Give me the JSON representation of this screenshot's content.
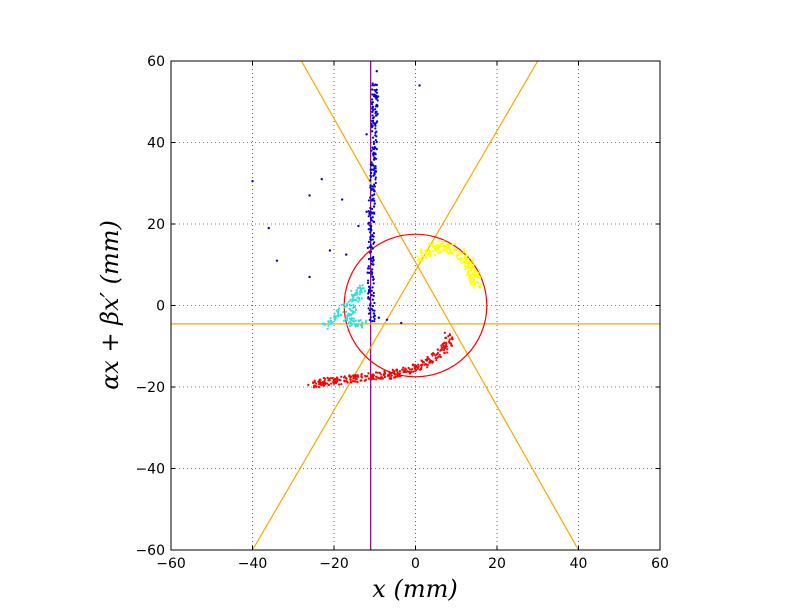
{
  "chart_data": {
    "type": "scatter",
    "title": "",
    "xlabel": "x  (mm)",
    "ylabel": "αx + βx′   (mm)",
    "xlim": [
      -60,
      60
    ],
    "ylim": [
      -60,
      60
    ],
    "x_ticks": [
      -60,
      -40,
      -20,
      0,
      20,
      40,
      60
    ],
    "y_ticks": [
      -60,
      -40,
      -20,
      0,
      20,
      40,
      60
    ],
    "x_tick_labels": [
      "−60",
      "−40",
      "−20",
      "0",
      "20",
      "40",
      "60"
    ],
    "y_tick_labels": [
      "−60",
      "−40",
      "−20",
      "0",
      "20",
      "40",
      "60"
    ],
    "grid": true,
    "grid_style": "dotted",
    "colors": {
      "blue": "#0000dd",
      "cyan": "#33dddd",
      "yellow": "#ffff00",
      "red": "#ff0000",
      "orange_lines": "#ffa500",
      "purple_line": "#800080",
      "circle": "#ff0000"
    },
    "reference_lines": [
      {
        "kind": "vertical",
        "x": -11,
        "color": "#800080"
      },
      {
        "kind": "horizontal",
        "y": -4.5,
        "color": "#ffa500"
      },
      {
        "kind": "line",
        "from": [
          -28,
          60
        ],
        "to": [
          40,
          -60
        ],
        "color": "#ffa500"
      },
      {
        "kind": "line",
        "from": [
          -40,
          -60
        ],
        "to": [
          30,
          60
        ],
        "color": "#ffa500"
      }
    ],
    "circle": {
      "cx": 0,
      "cy": 0,
      "r": 17.5,
      "color": "#ff0000"
    },
    "series": [
      {
        "color": "#0000dd",
        "trace": [
          [
            -10.8,
            -3.5
          ],
          [
            -10.9,
            2
          ],
          [
            -11,
            10
          ],
          [
            -10.8,
            20
          ],
          [
            -10.5,
            30
          ],
          [
            -10.2,
            40
          ],
          [
            -10,
            48
          ],
          [
            -9.8,
            55
          ]
        ],
        "width": 0.8,
        "n": 260,
        "scattered": [
          [
            -9.5,
            57.5
          ],
          [
            1,
            54
          ],
          [
            -12,
            42
          ],
          [
            -40,
            30.5
          ],
          [
            -23,
            31
          ],
          [
            -26,
            27
          ],
          [
            -18,
            26
          ],
          [
            -36,
            19
          ],
          [
            -14,
            19.5
          ],
          [
            -21,
            13.5
          ],
          [
            -17,
            12.5
          ],
          [
            -34,
            11
          ],
          [
            -26,
            7
          ],
          [
            -12,
            23
          ],
          [
            -10,
            25
          ],
          [
            -9,
            -3
          ],
          [
            -7,
            -3.5
          ],
          [
            -3.5,
            -4.3
          ],
          [
            -10,
            -2.5
          ]
        ]
      },
      {
        "color": "#33dddd",
        "trace": [
          [
            -22,
            -5
          ],
          [
            -20,
            -3.5
          ],
          [
            -17,
            0.5
          ],
          [
            -15,
            3
          ],
          [
            -13,
            5
          ],
          [
            -17,
            -4
          ],
          [
            -14,
            -4.2
          ],
          [
            -12,
            -4.5
          ]
        ],
        "width": 1.0,
        "n": 150,
        "scattered": []
      },
      {
        "color": "#ffff00",
        "trace": [
          [
            1,
            11.5
          ],
          [
            3,
            13
          ],
          [
            6,
            14.5
          ],
          [
            9,
            14
          ],
          [
            12,
            11.5
          ],
          [
            14,
            8.5
          ],
          [
            15,
            5
          ]
        ],
        "width": 1.4,
        "n": 220,
        "scattered": []
      },
      {
        "color": "#ff0000",
        "trace": [
          [
            -26,
            -19.5
          ],
          [
            -20,
            -18.5
          ],
          [
            -14,
            -17.8
          ],
          [
            -8,
            -17.2
          ],
          [
            -2,
            -16.2
          ],
          [
            2,
            -14.5
          ],
          [
            5,
            -12.5
          ],
          [
            7.5,
            -10
          ],
          [
            8.5,
            -8
          ],
          [
            8,
            -7
          ]
        ],
        "width": 1.0,
        "n": 320,
        "scattered": []
      }
    ]
  }
}
